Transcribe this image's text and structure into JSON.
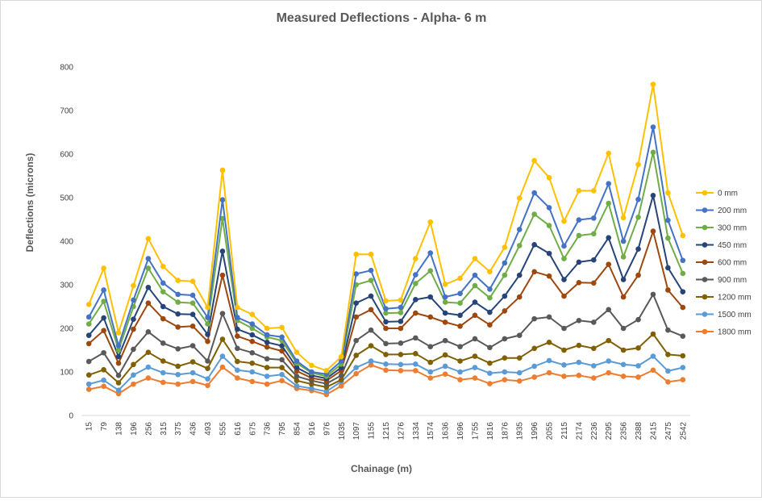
{
  "chart_data": {
    "type": "line",
    "title": "Measured Deflections - Alpha- 6 m",
    "xlabel": "Chainage (m)",
    "ylabel": "Deflections (microns)",
    "ylim": [
      0,
      800
    ],
    "yticks": [
      0,
      100,
      200,
      300,
      400,
      500,
      600,
      700,
      800
    ],
    "grid": false,
    "legend": "right",
    "categories": [
      "15",
      "79",
      "138",
      "196",
      "256",
      "315",
      "375",
      "436",
      "493",
      "555",
      "616",
      "675",
      "736",
      "795",
      "854",
      "916",
      "976",
      "1035",
      "1097",
      "1155",
      "1215",
      "1276",
      "1334",
      "1574",
      "1636",
      "1696",
      "1755",
      "1816",
      "1876",
      "1935",
      "1996",
      "2055",
      "2115",
      "2174",
      "2236",
      "2295",
      "2356",
      "2388",
      "2415",
      "2475",
      "2542"
    ],
    "series": [
      {
        "name": "0 mm",
        "color": "#ffc000",
        "values": [
          255,
          338,
          190,
          298,
          406,
          342,
          310,
          308,
          248,
          563,
          248,
          232,
          200,
          202,
          145,
          115,
          103,
          135,
          370,
          370,
          263,
          265,
          360,
          444,
          301,
          315,
          360,
          330,
          386,
          499,
          585,
          546,
          446,
          516,
          516,
          602,
          454,
          576,
          760,
          511,
          413
        ]
      },
      {
        "name": "200 mm",
        "color": "#4472c4",
        "values": [
          226,
          288,
          160,
          265,
          360,
          304,
          278,
          276,
          225,
          495,
          225,
          210,
          185,
          180,
          125,
          100,
          95,
          125,
          325,
          333,
          245,
          248,
          323,
          373,
          272,
          280,
          322,
          290,
          350,
          427,
          511,
          477,
          389,
          449,
          453,
          532,
          400,
          496,
          662,
          448,
          356
        ]
      },
      {
        "name": "300 mm",
        "color": "#70ad47",
        "values": [
          210,
          262,
          150,
          250,
          338,
          284,
          260,
          258,
          210,
          452,
          218,
          200,
          180,
          172,
          120,
          98,
          90,
          118,
          300,
          310,
          235,
          236,
          303,
          332,
          260,
          258,
          298,
          270,
          322,
          390,
          462,
          436,
          360,
          413,
          417,
          487,
          364,
          455,
          604,
          407,
          326
        ]
      },
      {
        "name": "450 mm",
        "color": "#264478",
        "values": [
          184,
          224,
          135,
          221,
          294,
          250,
          233,
          232,
          186,
          377,
          198,
          185,
          168,
          160,
          110,
          92,
          85,
          110,
          258,
          274,
          215,
          216,
          266,
          272,
          235,
          230,
          260,
          237,
          274,
          322,
          392,
          372,
          312,
          352,
          357,
          408,
          312,
          382,
          505,
          339,
          284
        ]
      },
      {
        "name": "600 mm",
        "color": "#9e480e",
        "values": [
          165,
          195,
          120,
          198,
          258,
          222,
          203,
          205,
          170,
          322,
          182,
          170,
          157,
          148,
          102,
          86,
          80,
          103,
          226,
          243,
          200,
          200,
          235,
          226,
          214,
          205,
          230,
          208,
          240,
          272,
          330,
          320,
          274,
          305,
          304,
          347,
          272,
          322,
          423,
          288,
          248
        ]
      },
      {
        "name": "900 mm",
        "color": "#595959",
        "values": [
          124,
          144,
          92,
          152,
          192,
          166,
          153,
          160,
          125,
          234,
          154,
          144,
          130,
          128,
          90,
          80,
          73,
          92,
          172,
          196,
          165,
          166,
          178,
          158,
          172,
          158,
          176,
          156,
          176,
          184,
          222,
          226,
          200,
          218,
          214,
          243,
          200,
          220,
          278,
          196,
          182
        ]
      },
      {
        "name": "1200 mm",
        "color": "#806000",
        "values": [
          93,
          105,
          75,
          117,
          145,
          125,
          113,
          123,
          108,
          175,
          124,
          120,
          110,
          110,
          80,
          72,
          65,
          82,
          138,
          160,
          140,
          140,
          142,
          122,
          139,
          125,
          136,
          120,
          132,
          132,
          154,
          168,
          150,
          161,
          154,
          172,
          150,
          155,
          187,
          140,
          137
        ]
      },
      {
        "name": "1500 mm",
        "color": "#5b9bd5",
        "values": [
          72,
          81,
          58,
          93,
          111,
          98,
          94,
          98,
          84,
          136,
          104,
          100,
          90,
          94,
          68,
          62,
          55,
          78,
          110,
          125,
          118,
          117,
          118,
          100,
          113,
          100,
          110,
          97,
          100,
          98,
          113,
          126,
          116,
          122,
          114,
          125,
          117,
          114,
          136,
          102,
          110
        ]
      },
      {
        "name": "1800 mm",
        "color": "#ed7d31",
        "values": [
          60,
          67,
          50,
          72,
          86,
          76,
          72,
          78,
          69,
          111,
          86,
          78,
          72,
          80,
          62,
          57,
          48,
          68,
          96,
          116,
          104,
          103,
          103,
          86,
          95,
          82,
          86,
          73,
          82,
          79,
          88,
          98,
          90,
          92,
          86,
          98,
          90,
          88,
          104,
          77,
          82
        ]
      }
    ]
  }
}
